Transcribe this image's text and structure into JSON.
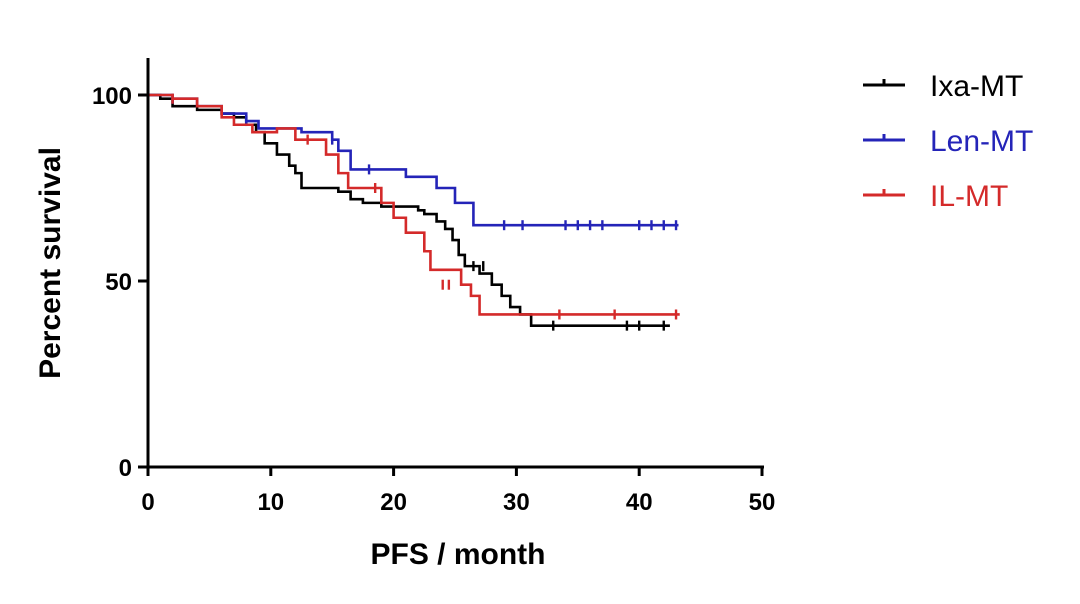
{
  "chart_data": {
    "type": "line",
    "title": "",
    "xlabel": "PFS / month",
    "ylabel": "Percent survival",
    "xlim": [
      0,
      50
    ],
    "ylim": [
      0,
      110
    ],
    "xticks": [
      "0",
      "10",
      "20",
      "30",
      "40",
      "50"
    ],
    "yticks": [
      "0",
      "50",
      "100"
    ],
    "grid": false,
    "legend_position": "top-right",
    "series": [
      {
        "name": "Ixa-MT",
        "color": "#000000",
        "step_x": [
          0,
          1,
          2,
          4,
          6,
          7,
          8,
          8.8,
          9.5,
          10.5,
          11.5,
          12,
          12.5,
          15.5,
          16.5,
          17.5,
          19,
          22,
          22.5,
          23.5,
          24.2,
          24.8,
          25.3,
          25.8,
          27,
          28,
          28.8,
          29.5,
          30.3,
          31.2,
          42.5
        ],
        "step_y": [
          100,
          99,
          97,
          96,
          95,
          94,
          92,
          90,
          87,
          84,
          81,
          79,
          75,
          74,
          72,
          71,
          70,
          69,
          68,
          66,
          64,
          61,
          57,
          54,
          52,
          49,
          46,
          43,
          41,
          38,
          38
        ],
        "censor_x": [
          26.5,
          27.3,
          33,
          39,
          40,
          42
        ],
        "censor_y": [
          54,
          54,
          38,
          38,
          38,
          38
        ]
      },
      {
        "name": "Len-MT",
        "color": "#2424b8",
        "step_x": [
          0,
          2,
          4,
          6,
          8,
          9,
          12.5,
          15,
          15.5,
          16.5,
          21,
          23.5,
          25,
          26.5,
          43.2
        ],
        "step_y": [
          100,
          99,
          97,
          95,
          93,
          91,
          90,
          88,
          85,
          80,
          78,
          75,
          71,
          65,
          65
        ],
        "censor_x": [
          2,
          8,
          15,
          18,
          29,
          30.5,
          34,
          35,
          36,
          37,
          40,
          41,
          42,
          43
        ],
        "censor_y": [
          99,
          93,
          88,
          80,
          65,
          65,
          65,
          65,
          65,
          65,
          65,
          65,
          65,
          65
        ]
      },
      {
        "name": "IL-MT",
        "color": "#d42a2a",
        "step_x": [
          0,
          2,
          4,
          6,
          7,
          8.5,
          10.5,
          12,
          14.5,
          15.5,
          16.3,
          19,
          20,
          21,
          22.5,
          23,
          25.5,
          26.3,
          27,
          43.3
        ],
        "step_y": [
          100,
          99,
          97,
          94,
          92,
          90,
          91,
          88,
          84,
          79,
          75,
          71,
          67,
          63,
          58,
          53,
          49,
          46,
          41,
          41
        ],
        "censor_x": [
          2,
          13,
          18.5,
          24,
          24.5,
          33.5,
          38,
          43
        ],
        "censor_y": [
          99,
          88,
          75,
          49,
          49,
          41,
          41,
          41
        ]
      }
    ]
  }
}
